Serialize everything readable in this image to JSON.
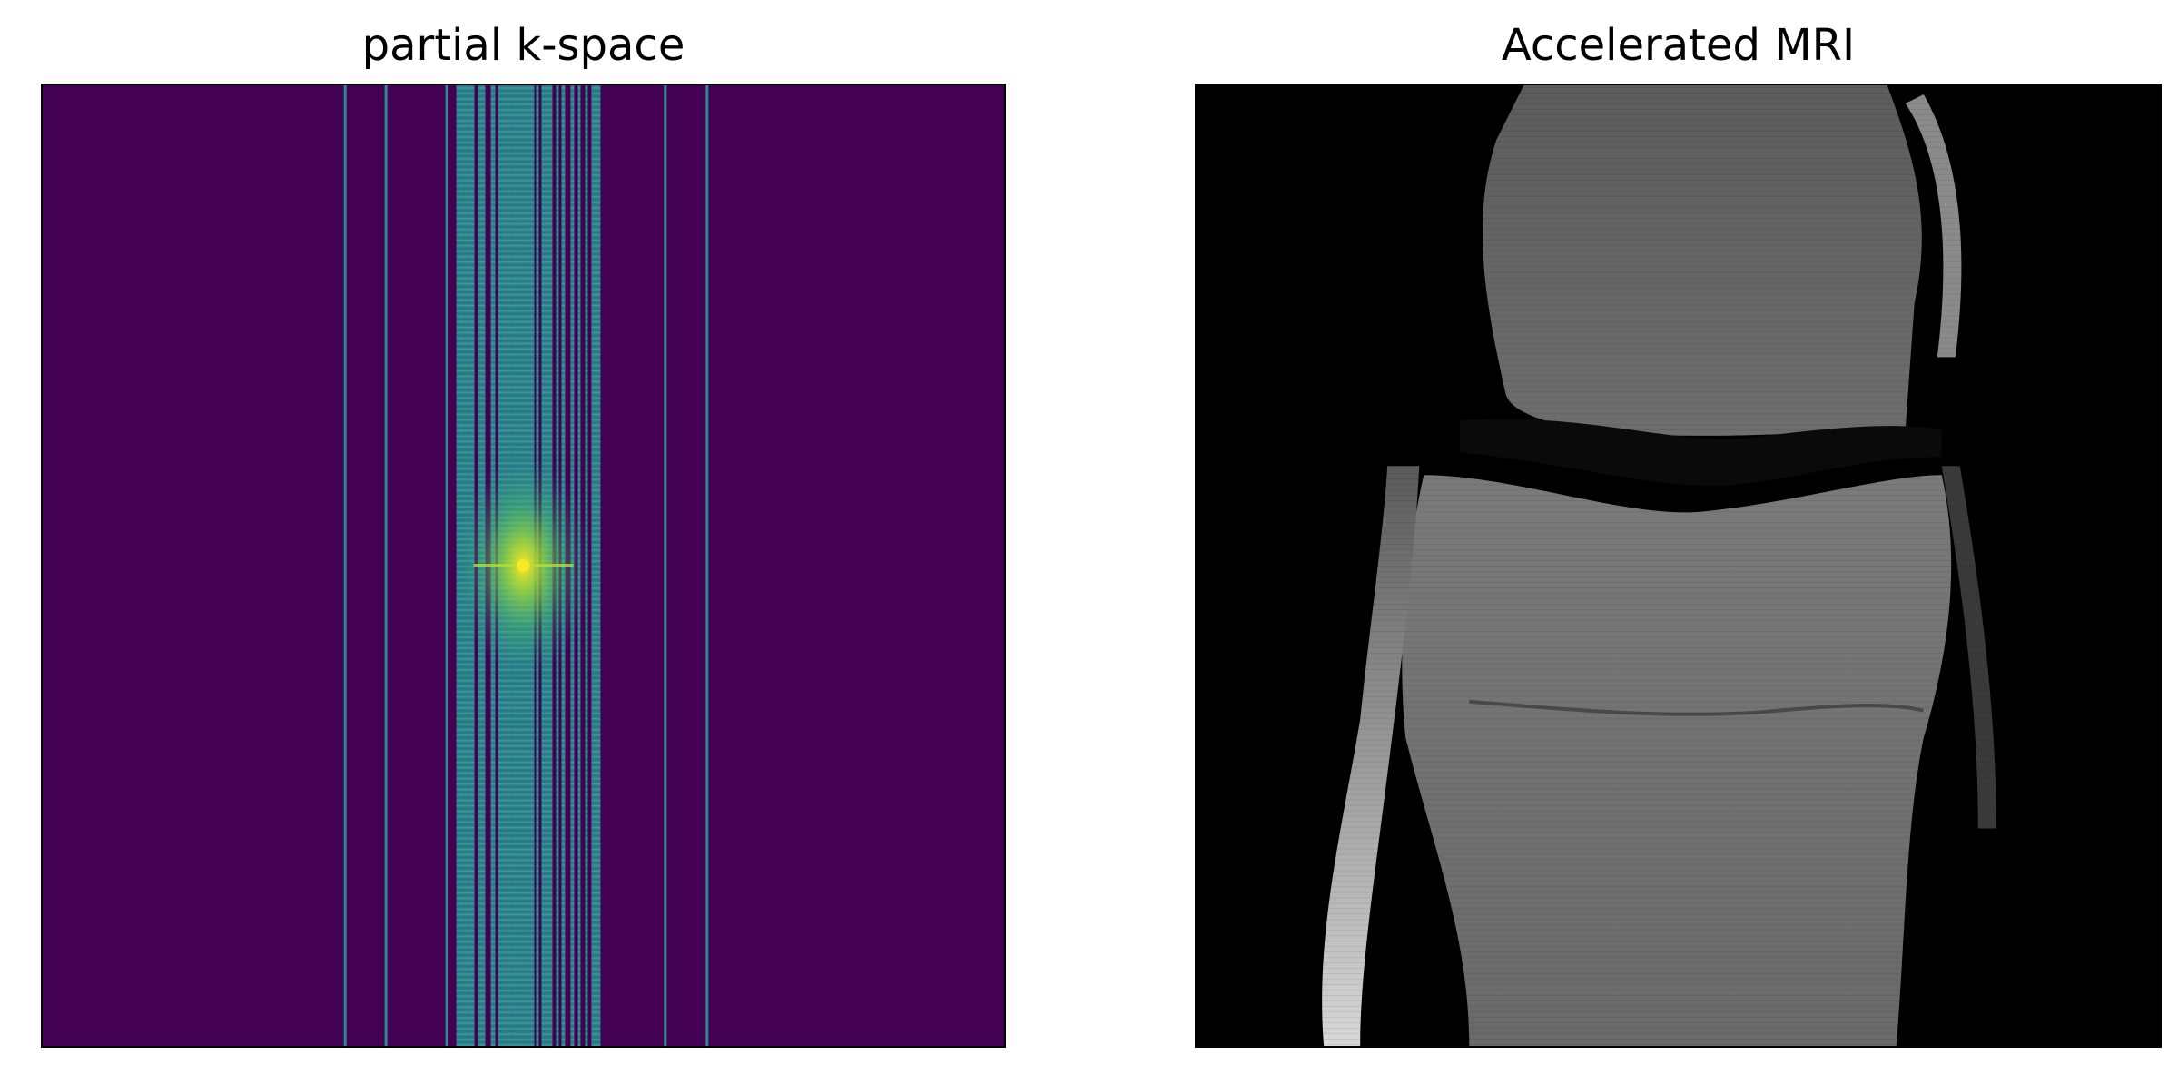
{
  "left_panel": {
    "title": "partial k-space"
  },
  "right_panel": {
    "title": "Accelerated MRI"
  },
  "colors": {
    "kspace_background": "#440154",
    "kspace_line": "#2a8a8c",
    "kspace_center": "#fde725",
    "mri_background": "#000000"
  }
}
